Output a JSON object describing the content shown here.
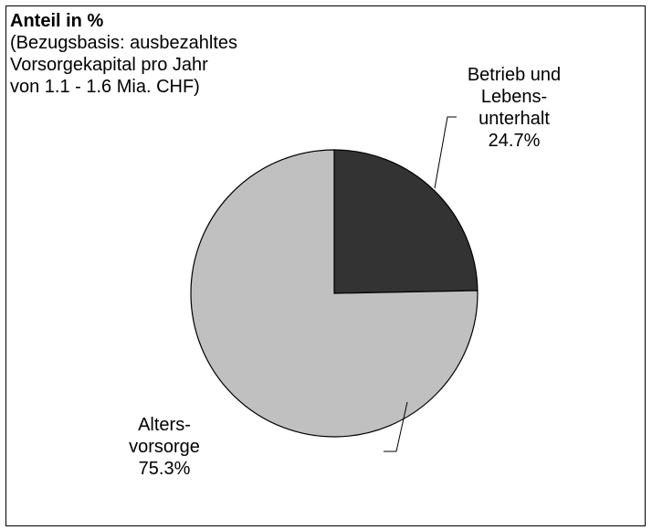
{
  "chart_data": {
    "type": "pie",
    "title": "Anteil in %",
    "subtitle_lines": [
      "(Bezugsbasis: ausbezahltes",
      "Vorsorgekapital pro Jahr",
      "von 1.1 - 1.6 Mia. CHF)"
    ],
    "slices": [
      {
        "label_lines": [
          "Betrieb und",
          "Lebens-",
          "unterhalt"
        ],
        "value": 24.7,
        "value_label": "24.7%",
        "color": "#333333"
      },
      {
        "label_lines": [
          "Alters-",
          "vorsorge"
        ],
        "value": 75.3,
        "value_label": "75.3%",
        "color": "#c0c0c0"
      }
    ],
    "start_angle": "12 o'clock",
    "direction": "clockwise"
  }
}
